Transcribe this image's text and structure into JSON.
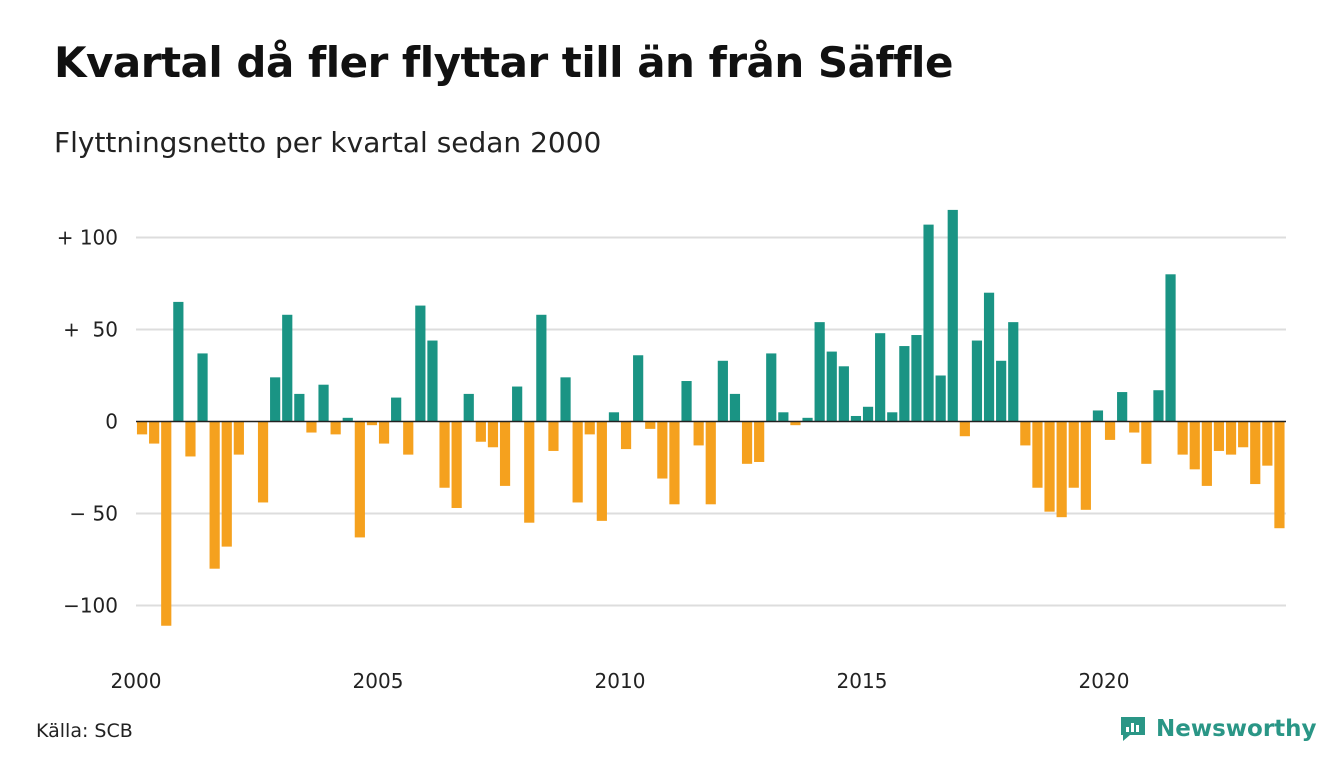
{
  "header": {
    "title": "Kvartal då fler flyttar till än från Säffle",
    "subtitle": "Flyttningsnetto per kvartal sedan 2000"
  },
  "footer": {
    "source": "Källa: SCB",
    "brand": "Newsworthy",
    "brand_icon": "chart-bubble-icon"
  },
  "colors": {
    "positive": "#1a9484",
    "negative": "#f5a11e",
    "grid": "#dddddd",
    "zero_line": "#222222",
    "brand": "#2a9686"
  },
  "chart_data": {
    "type": "bar",
    "title": "Kvartal då fler flyttar till än från Säffle",
    "subtitle": "Flyttningsnetto per kvartal sedan 2000",
    "xlabel": "",
    "ylabel": "",
    "ylim": [
      -115,
      115
    ],
    "y_ticks": [
      {
        "value": 100,
        "label": "+ 100"
      },
      {
        "value": 50,
        "label": "+  50"
      },
      {
        "value": 0,
        "label": "0"
      },
      {
        "value": -50,
        "label": "− 50"
      },
      {
        "value": -100,
        "label": "−100"
      }
    ],
    "x_ticks": [
      "2000",
      "2005",
      "2010",
      "2015",
      "2020"
    ],
    "grid": true,
    "legend": "none",
    "start_year": 2000,
    "values": [
      -7,
      -12,
      -111,
      65,
      -19,
      37,
      -80,
      -68,
      -18,
      0,
      -44,
      24,
      58,
      15,
      -6,
      20,
      -7,
      2,
      -63,
      -2,
      -12,
      13,
      -18,
      63,
      44,
      -36,
      -47,
      15,
      -11,
      -14,
      -35,
      19,
      -55,
      58,
      -16,
      24,
      -44,
      -7,
      -54,
      5,
      -15,
      36,
      -4,
      -31,
      -45,
      22,
      -13,
      -45,
      33,
      15,
      -23,
      -22,
      37,
      5,
      -2,
      2,
      54,
      38,
      30,
      3,
      8,
      48,
      5,
      41,
      47,
      107,
      25,
      115,
      -8,
      44,
      70,
      33,
      54,
      -13,
      -36,
      -49,
      -52,
      -36,
      -48,
      6,
      -10,
      16,
      -6,
      -23,
      17,
      80,
      -18,
      -26,
      -35,
      -16,
      -18,
      -14,
      -34,
      -24,
      -58
    ]
  }
}
